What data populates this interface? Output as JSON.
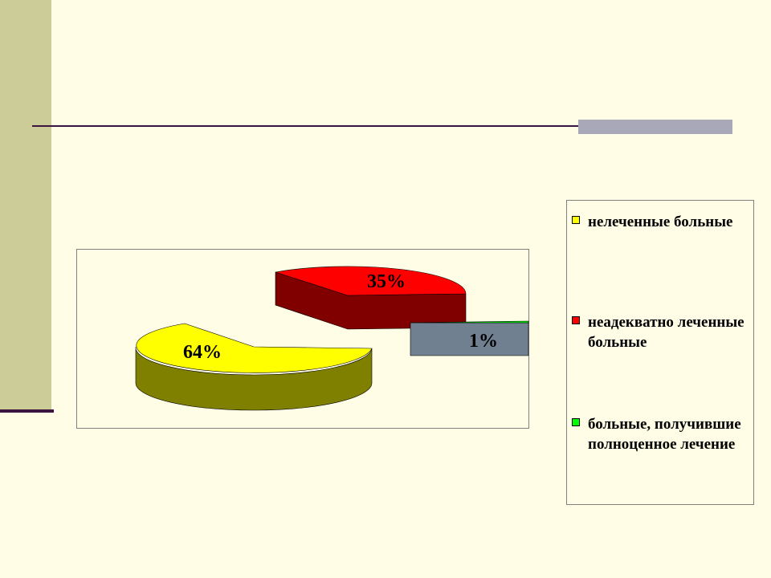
{
  "chart_data": {
    "type": "pie",
    "title": "",
    "three_d": true,
    "exploded": true,
    "legend_position": "right",
    "series": [
      {
        "label": "нелеченные больные",
        "value": 64,
        "data_label": "64%",
        "color": "#ffff00",
        "side_color": "#808000"
      },
      {
        "label": "неадекватно леченные больные",
        "value": 35,
        "data_label": "35%",
        "color": "#ff0000",
        "side_color": "#800000"
      },
      {
        "label": "больные, получившие полноценное лечение",
        "value": 1,
        "data_label": "1%",
        "color": "#00ff00",
        "side_color": "#708090"
      }
    ]
  }
}
